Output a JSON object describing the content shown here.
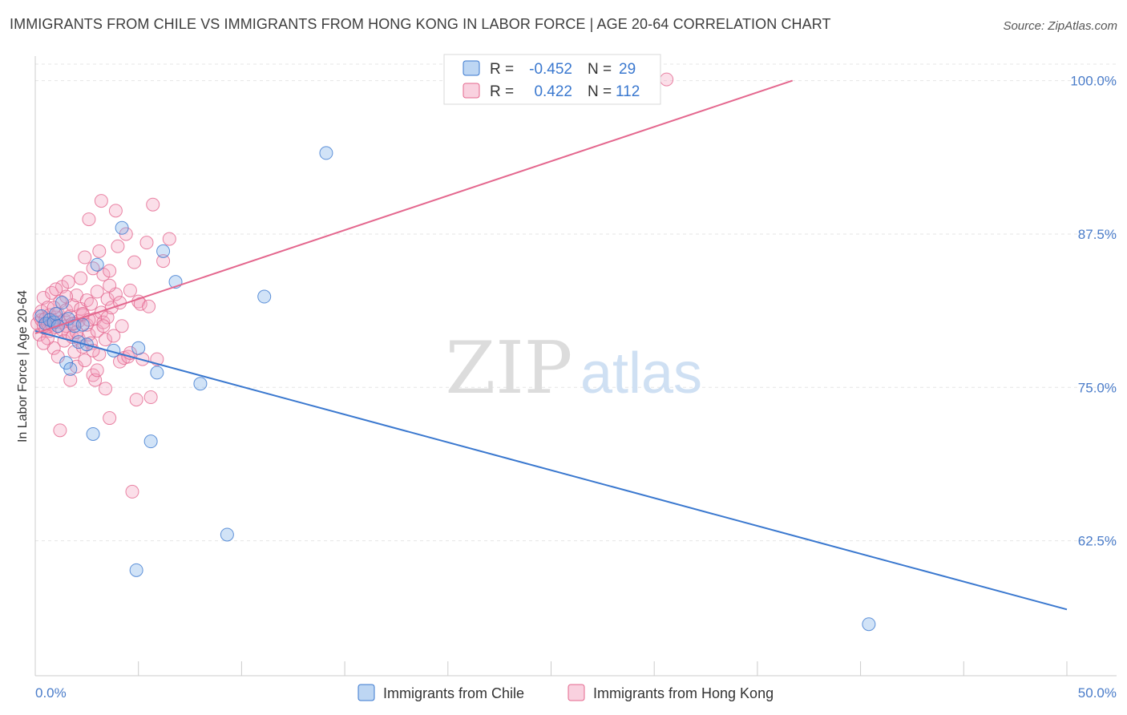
{
  "title": "IMMIGRANTS FROM CHILE VS IMMIGRANTS FROM HONG KONG IN LABOR FORCE | AGE 20-64 CORRELATION CHART",
  "source": "Source: ZipAtlas.com",
  "watermark": {
    "zip": "ZIP",
    "atlas": "atlas"
  },
  "legend_box": {
    "rows": [
      {
        "r_label": "R =",
        "r_value": "-0.452",
        "n_label": "N =",
        "n_value": "29"
      },
      {
        "r_label": "R =",
        "r_value": "0.422",
        "n_label": "N =",
        "n_value": "112"
      }
    ]
  },
  "colors": {
    "chile": "#7baee8",
    "chile_line": "#3a78cf",
    "hongkong": "#f4a3bf",
    "hongkong_line": "#e4678e",
    "grid": "#e6e6e6",
    "axis_text": "#4a7cc9"
  },
  "chart_data": {
    "type": "scatter",
    "title": "IMMIGRANTS FROM CHILE VS IMMIGRANTS FROM HONG KONG IN LABOR FORCE | AGE 20-64 CORRELATION CHART",
    "xlabel": "",
    "ylabel": "In Labor Force | Age 20-64",
    "xlim": [
      0,
      50
    ],
    "ylim": [
      51.5,
      102
    ],
    "x_tick_labels": [
      "0.0%",
      "50.0%"
    ],
    "y_ticks": [
      62.5,
      75.0,
      87.5,
      100.0
    ],
    "y_tick_labels": [
      "62.5%",
      "75.0%",
      "87.5%",
      "100.0%"
    ],
    "grid": true,
    "legend_position": "bottom",
    "series": [
      {
        "name": "Immigrants from Chile",
        "color": "#7baee8",
        "r": -0.452,
        "n": 29,
        "trend": [
          [
            0,
            79.6
          ],
          [
            50,
            56.9
          ]
        ],
        "points": [
          [
            0.3,
            80.8
          ],
          [
            0.5,
            80.2
          ],
          [
            0.7,
            80.5
          ],
          [
            0.9,
            80.3
          ],
          [
            1.0,
            81.0
          ],
          [
            1.1,
            80.0
          ],
          [
            1.3,
            81.9
          ],
          [
            1.5,
            77.0
          ],
          [
            1.6,
            80.6
          ],
          [
            1.7,
            76.5
          ],
          [
            1.9,
            80.0
          ],
          [
            2.1,
            78.7
          ],
          [
            2.3,
            80.1
          ],
          [
            2.5,
            78.5
          ],
          [
            2.8,
            71.2
          ],
          [
            3.0,
            85.0
          ],
          [
            3.8,
            78.0
          ],
          [
            4.2,
            88.0
          ],
          [
            4.9,
            60.1
          ],
          [
            5.0,
            78.2
          ],
          [
            5.6,
            70.6
          ],
          [
            5.9,
            76.2
          ],
          [
            6.2,
            86.1
          ],
          [
            6.8,
            83.6
          ],
          [
            8.0,
            75.3
          ],
          [
            9.3,
            63.0
          ],
          [
            11.1,
            82.4
          ],
          [
            14.1,
            94.1
          ],
          [
            40.4,
            55.7
          ]
        ]
      },
      {
        "name": "Immigrants from Hong Kong",
        "color": "#f4a3bf",
        "r": 0.422,
        "n": 112,
        "trend": [
          [
            0,
            79.4
          ],
          [
            36.7,
            100.0
          ]
        ],
        "points": [
          [
            0.1,
            80.2
          ],
          [
            0.2,
            80.8
          ],
          [
            0.2,
            79.3
          ],
          [
            0.3,
            80.5
          ],
          [
            0.3,
            81.2
          ],
          [
            0.4,
            80.0
          ],
          [
            0.4,
            82.3
          ],
          [
            0.5,
            79.8
          ],
          [
            0.5,
            80.6
          ],
          [
            0.6,
            80.2
          ],
          [
            0.6,
            81.5
          ],
          [
            0.7,
            79.6
          ],
          [
            0.7,
            80.9
          ],
          [
            0.8,
            80.1
          ],
          [
            0.8,
            82.7
          ],
          [
            0.9,
            80.4
          ],
          [
            0.9,
            78.2
          ],
          [
            1.0,
            80.7
          ],
          [
            1.0,
            79.9
          ],
          [
            1.1,
            81.0
          ],
          [
            1.1,
            77.5
          ],
          [
            1.2,
            80.3
          ],
          [
            1.2,
            82.0
          ],
          [
            1.3,
            79.7
          ],
          [
            1.3,
            83.2
          ],
          [
            1.4,
            80.5
          ],
          [
            1.4,
            78.8
          ],
          [
            1.5,
            81.3
          ],
          [
            1.5,
            80.0
          ],
          [
            1.6,
            79.4
          ],
          [
            1.6,
            83.6
          ],
          [
            1.7,
            80.8
          ],
          [
            1.7,
            75.6
          ],
          [
            1.8,
            81.7
          ],
          [
            1.8,
            79.1
          ],
          [
            1.9,
            80.2
          ],
          [
            1.9,
            77.9
          ],
          [
            2.0,
            82.5
          ],
          [
            2.0,
            76.7
          ],
          [
            2.1,
            80.4
          ],
          [
            2.1,
            79.0
          ],
          [
            2.2,
            83.9
          ],
          [
            2.2,
            81.4
          ],
          [
            2.3,
            78.3
          ],
          [
            2.3,
            80.9
          ],
          [
            2.4,
            85.6
          ],
          [
            2.4,
            77.2
          ],
          [
            2.5,
            82.1
          ],
          [
            2.5,
            80.1
          ],
          [
            2.6,
            79.3
          ],
          [
            2.6,
            88.7
          ],
          [
            2.7,
            81.8
          ],
          [
            2.7,
            78.6
          ],
          [
            2.8,
            84.7
          ],
          [
            2.8,
            76.0
          ],
          [
            2.9,
            80.6
          ],
          [
            2.9,
            75.6
          ],
          [
            3.0,
            82.8
          ],
          [
            3.0,
            79.6
          ],
          [
            3.1,
            86.1
          ],
          [
            3.1,
            77.7
          ],
          [
            3.2,
            81.1
          ],
          [
            3.2,
            90.2
          ],
          [
            3.3,
            84.2
          ],
          [
            3.3,
            80.3
          ],
          [
            3.4,
            78.9
          ],
          [
            3.4,
            74.9
          ],
          [
            3.5,
            82.2
          ],
          [
            3.5,
            80.7
          ],
          [
            3.6,
            84.5
          ],
          [
            3.6,
            72.5
          ],
          [
            3.7,
            81.5
          ],
          [
            3.8,
            79.2
          ],
          [
            3.9,
            89.4
          ],
          [
            3.9,
            82.6
          ],
          [
            4.0,
            86.5
          ],
          [
            4.1,
            77.1
          ],
          [
            4.2,
            80.0
          ],
          [
            4.3,
            77.4
          ],
          [
            4.4,
            87.5
          ],
          [
            4.5,
            77.5
          ],
          [
            4.6,
            82.9
          ],
          [
            4.7,
            66.5
          ],
          [
            4.8,
            85.2
          ],
          [
            4.9,
            74.0
          ],
          [
            5.0,
            82.0
          ],
          [
            5.1,
            81.8
          ],
          [
            5.2,
            77.3
          ],
          [
            5.4,
            86.8
          ],
          [
            5.6,
            74.2
          ],
          [
            5.7,
            89.9
          ],
          [
            5.9,
            77.3
          ],
          [
            6.2,
            85.3
          ],
          [
            6.5,
            87.1
          ],
          [
            1.2,
            71.5
          ],
          [
            2.3,
            81.0
          ],
          [
            0.6,
            79.0
          ],
          [
            1.0,
            83.0
          ],
          [
            3.3,
            80.0
          ],
          [
            2.0,
            79.5
          ],
          [
            4.1,
            81.9
          ],
          [
            1.8,
            80.2
          ],
          [
            0.9,
            81.5
          ],
          [
            2.8,
            78.0
          ],
          [
            3.6,
            83.3
          ],
          [
            1.5,
            82.4
          ],
          [
            0.4,
            78.6
          ],
          [
            2.6,
            80.5
          ],
          [
            4.6,
            77.8
          ],
          [
            3.0,
            76.4
          ],
          [
            5.5,
            81.6
          ],
          [
            30.6,
            100.1
          ]
        ]
      }
    ]
  }
}
